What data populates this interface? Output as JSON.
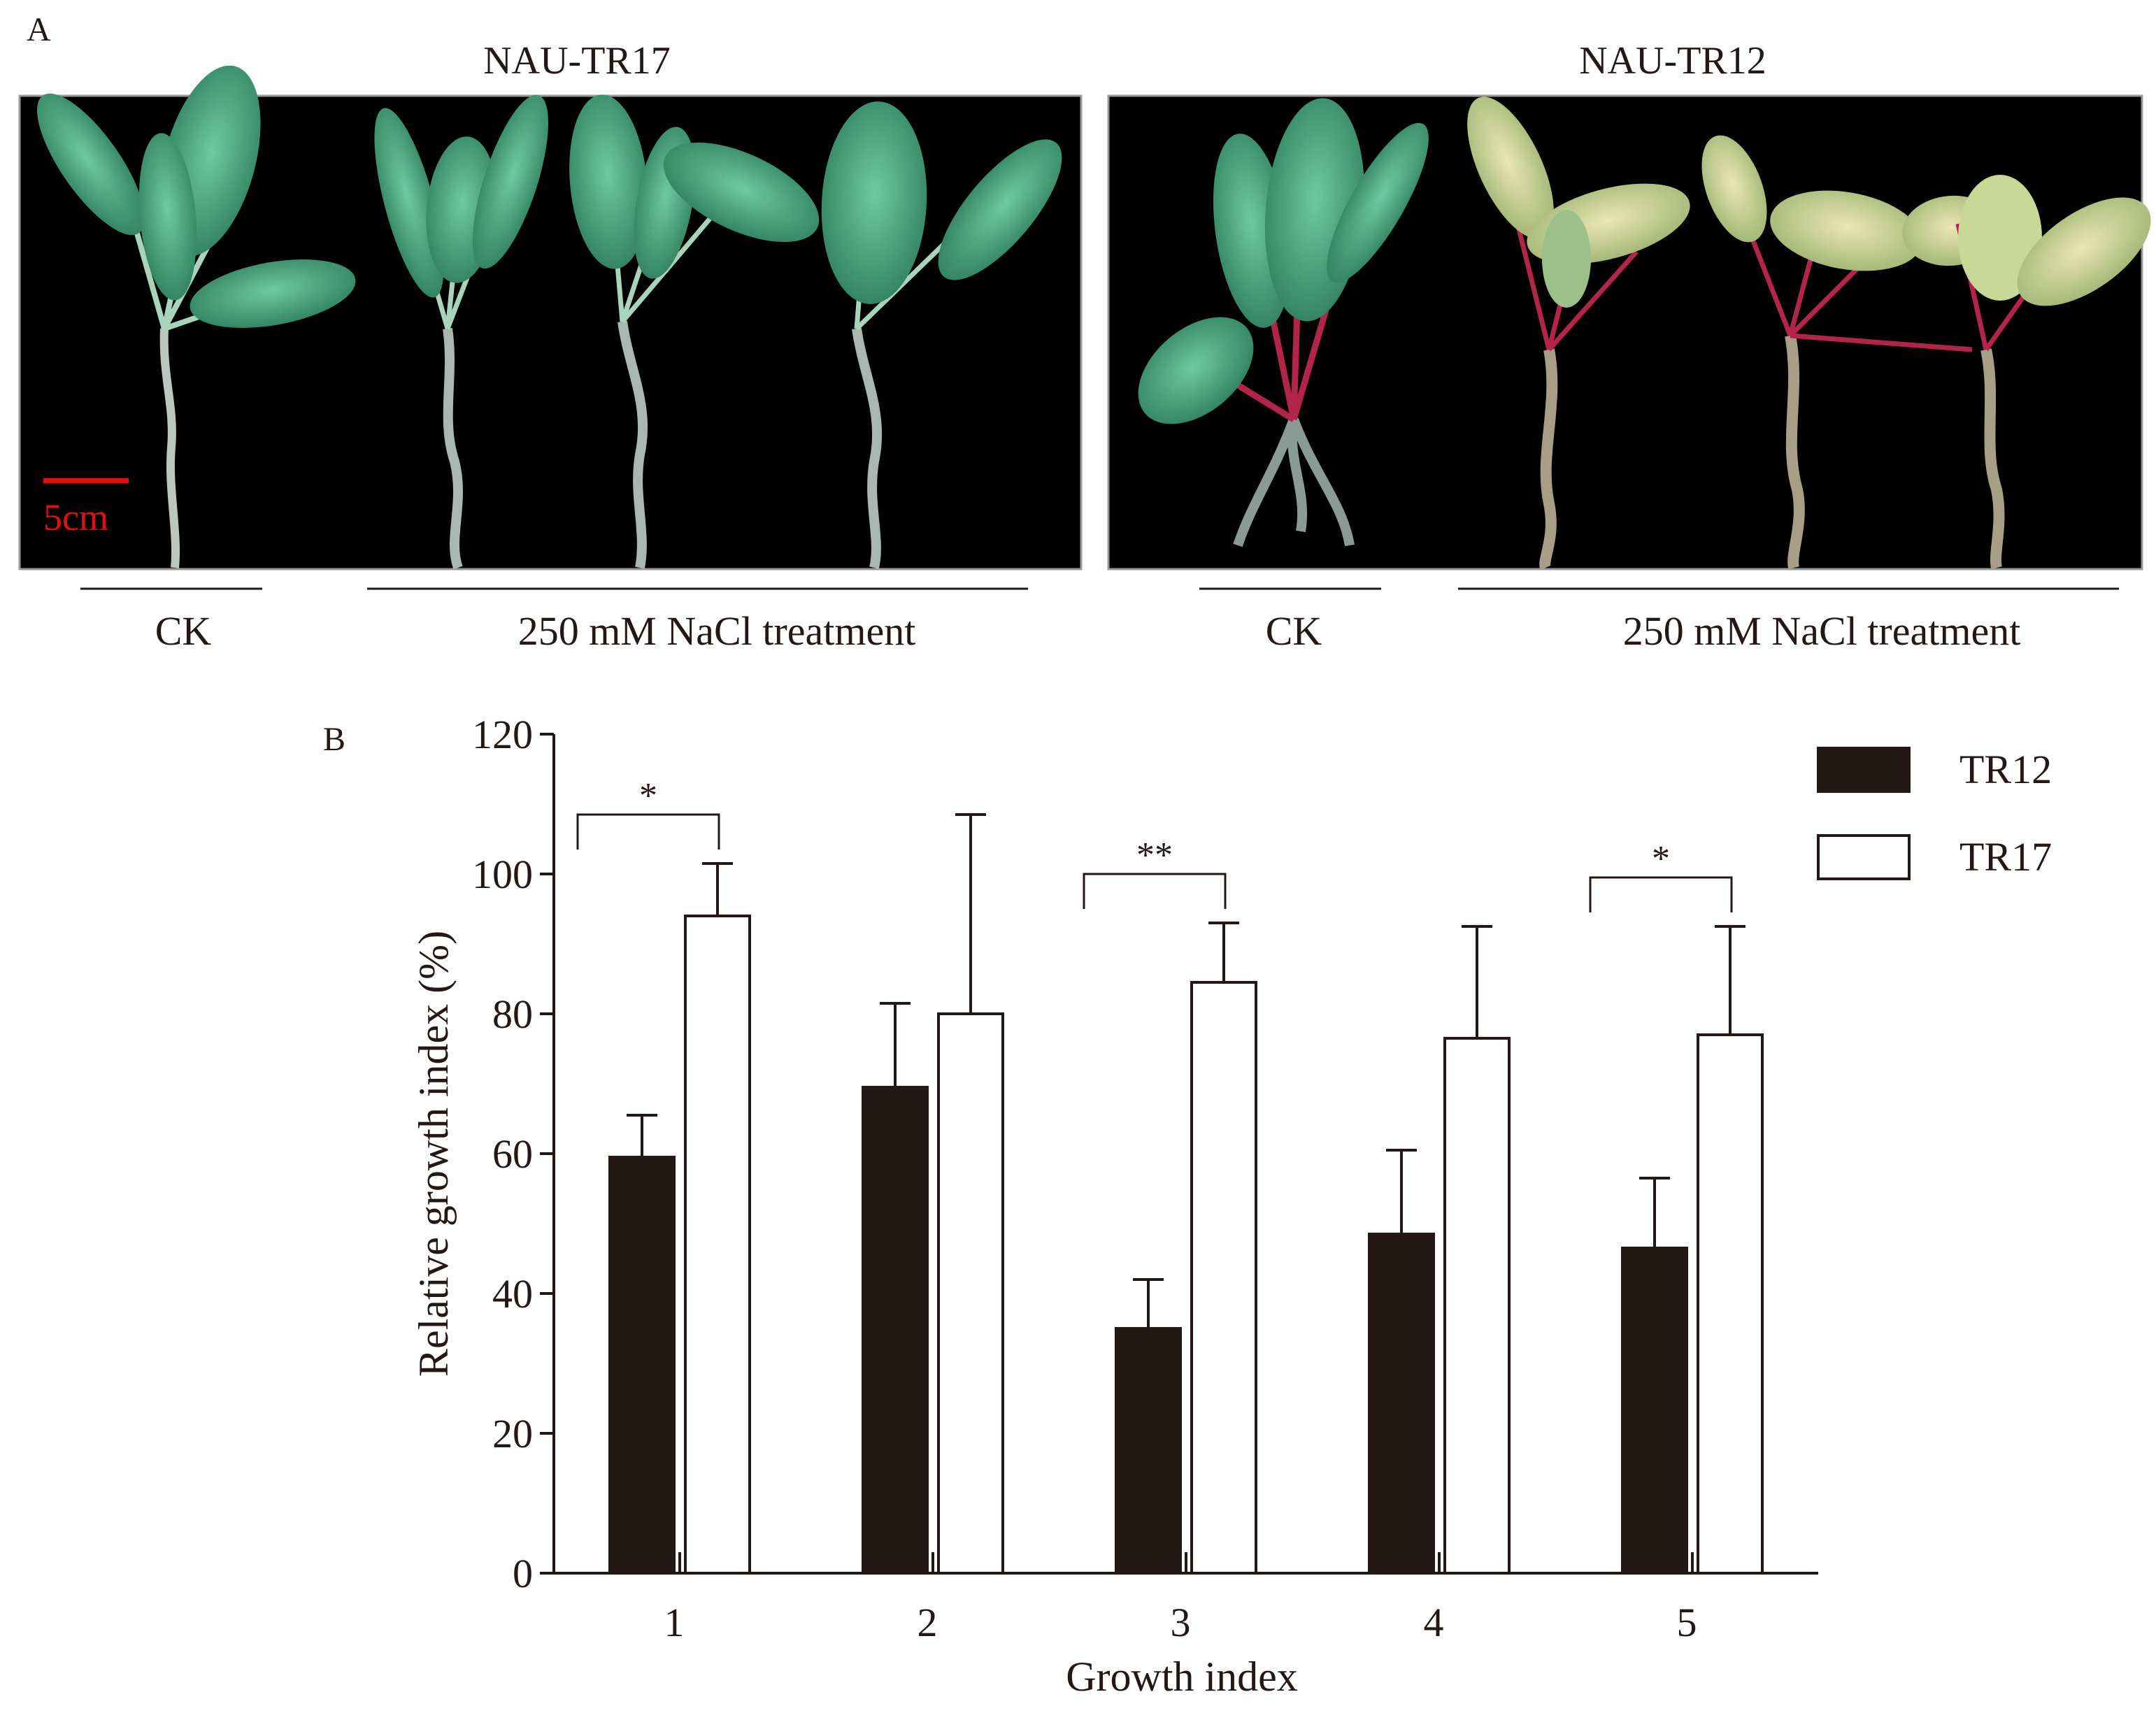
{
  "panel_a": {
    "label": "A",
    "left": {
      "title": "NAU-TR17",
      "scale_label": "5cm",
      "group_ck": "CK",
      "group_treatment": "250 mM NaCl treatment"
    },
    "right": {
      "title": "NAU-TR12",
      "group_ck": "CK",
      "group_treatment": "250 mM NaCl treatment"
    },
    "colors": {
      "background": "#000000",
      "healthy_leaf": "#3e9c78",
      "stem": "#b9c7bf",
      "petiole_red": "#b3244a",
      "wilted_leaf": "#d7d6a0",
      "scale_bar": "#e01010"
    }
  },
  "panel_b": {
    "label": "B",
    "colors": {
      "TR12": "#231815",
      "TR17": "#ffffff",
      "axis": "#231815"
    }
  },
  "chart_data": {
    "type": "bar",
    "title": "",
    "xlabel": "Growth index",
    "ylabel": "Relative growth index (%)",
    "categories": [
      "1",
      "2",
      "3",
      "4",
      "5"
    ],
    "ylim": [
      0,
      120
    ],
    "yticks": [
      0,
      20,
      40,
      60,
      80,
      100,
      120
    ],
    "legend_position": "top-right",
    "grid": false,
    "series": [
      {
        "name": "TR12",
        "values": [
          59.5,
          69.5,
          35,
          48.5,
          46.5
        ],
        "errors": [
          6,
          12,
          7,
          12,
          10
        ]
      },
      {
        "name": "TR17",
        "values": [
          94,
          80,
          84.5,
          76.5,
          77
        ],
        "errors": [
          7.5,
          28.5,
          8.5,
          16,
          15.5
        ]
      }
    ],
    "significance": [
      {
        "category": "1",
        "label": "*"
      },
      {
        "category": "3",
        "label": "**"
      },
      {
        "category": "5",
        "label": "*"
      }
    ]
  }
}
